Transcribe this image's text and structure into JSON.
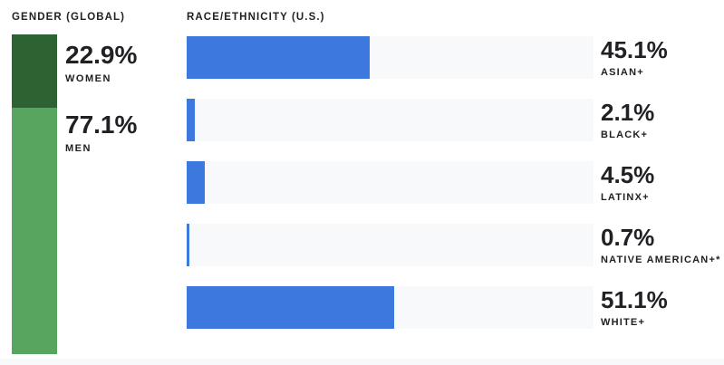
{
  "gender": {
    "header": "GENDER (GLOBAL)",
    "segments": [
      {
        "label": "WOMEN",
        "value": "22.9%",
        "pct": 22.9,
        "color": "#2d6332"
      },
      {
        "label": "MEN",
        "value": "77.1%",
        "pct": 77.1,
        "color": "#57a55e"
      }
    ]
  },
  "race": {
    "header": "RACE/ETHNICITY (U.S.)",
    "bar_color": "#3c78dd",
    "track_color": "#f8f9fa",
    "rows": [
      {
        "label": "ASIAN+",
        "value": "45.1%",
        "pct": 45.1
      },
      {
        "label": "BLACK+",
        "value": "2.1%",
        "pct": 2.1
      },
      {
        "label": "LATINX+",
        "value": "4.5%",
        "pct": 4.5
      },
      {
        "label": "NATIVE AMERICAN+*",
        "value": "0.7%",
        "pct": 0.7
      },
      {
        "label": "WHITE+",
        "value": "51.1%",
        "pct": 51.1
      }
    ]
  },
  "footer_band_color": "#f8f9fa",
  "chart_data": [
    {
      "type": "bar",
      "subtype": "vertical-stacked-single-column",
      "title": "GENDER (GLOBAL)",
      "categories": [
        "WOMEN",
        "MEN"
      ],
      "values": [
        22.9,
        77.1
      ],
      "unit": "%",
      "colors": [
        "#2d6332",
        "#57a55e"
      ],
      "ylim": [
        0,
        100
      ],
      "grid": false,
      "legend": "value labels right of column"
    },
    {
      "type": "bar",
      "subtype": "horizontal",
      "title": "RACE/ETHNICITY (U.S.)",
      "categories": [
        "ASIAN+",
        "BLACK+",
        "LATINX+",
        "NATIVE AMERICAN+*",
        "WHITE+"
      ],
      "values": [
        45.1,
        2.1,
        4.5,
        0.7,
        51.1
      ],
      "unit": "%",
      "bar_color": "#3c78dd",
      "track_color": "#f8f9fa",
      "xlim": [
        0,
        100
      ],
      "grid": false,
      "legend": "value labels right of each bar"
    }
  ]
}
